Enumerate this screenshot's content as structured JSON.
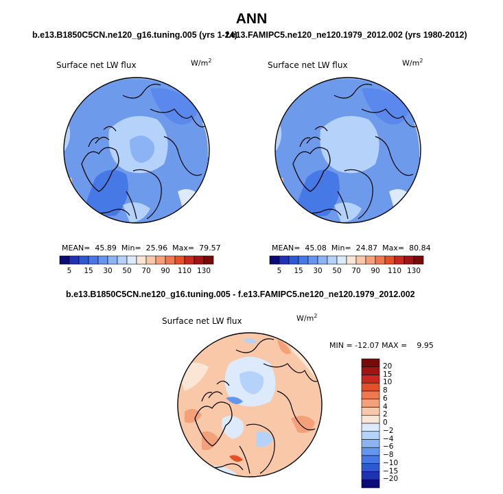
{
  "title": "ANN",
  "panel1": {
    "subtitle": "b.e13.B1850C5CN.ne120_g16.tuning.005 (yrs 1-24)",
    "label": "Surface net LW flux",
    "units": "W/m",
    "units_exp": "2",
    "mean_label": "MEAN=",
    "mean": "45.89",
    "min_label": "Min=",
    "min": "25.96",
    "max_label": "Max=",
    "max": "79.57"
  },
  "panel2": {
    "subtitle": "f.e13.FAMIPC5.ne120_ne120.1979_2012.002 (yrs 1980-2012)",
    "label": "Surface net LW flux",
    "units": "W/m",
    "units_exp": "2",
    "mean_label": "MEAN=",
    "mean": "45.08",
    "min_label": "Min=",
    "min": "24.87",
    "max_label": "Max=",
    "max": "80.84"
  },
  "diff": {
    "subtitle": "b.e13.B1850C5CN.ne120_g16.tuning.005 - f.e13.FAMIPC5.ne120_ne120.1979_2012.002",
    "label": "Surface net LW flux",
    "units": "W/m",
    "units_exp": "2",
    "minmax": "MIN = -12.07 MAX =    9.95"
  },
  "colorbar_top": {
    "colors": [
      "#0a0a78",
      "#1e32b4",
      "#2d5ad2",
      "#4678e6",
      "#6496f0",
      "#8cb4f5",
      "#b4d2fa",
      "#dceafc",
      "#fbe6d6",
      "#f8c8a8",
      "#f4a078",
      "#f07850",
      "#e65028",
      "#c8281e",
      "#a01414",
      "#780a0a"
    ],
    "ticks": [
      "5",
      "15",
      "30",
      "50",
      "70",
      "90",
      "110",
      "130"
    ]
  },
  "colorbar_diff": {
    "colors": [
      "#780a0a",
      "#a01414",
      "#c8281e",
      "#e65028",
      "#f07850",
      "#f4a078",
      "#f8c8a8",
      "#fbe6d6",
      "#dceafc",
      "#b4d2fa",
      "#8cb4f5",
      "#6496f0",
      "#4678e6",
      "#2d5ad2",
      "#1e32b4",
      "#0a0a78"
    ],
    "ticks": [
      "20",
      "15",
      "10",
      "8",
      "6",
      "4",
      "2",
      "0",
      "−2",
      "−4",
      "−6",
      "−8",
      "−10",
      "−15",
      "−20"
    ]
  }
}
